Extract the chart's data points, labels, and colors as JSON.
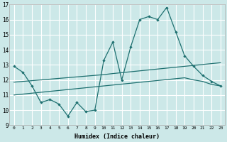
{
  "xlabel": "Humidex (Indice chaleur)",
  "xlim": [
    -0.5,
    23.5
  ],
  "ylim": [
    9,
    17
  ],
  "yticks": [
    9,
    10,
    11,
    12,
    13,
    14,
    15,
    16,
    17
  ],
  "xticks": [
    0,
    1,
    2,
    3,
    4,
    5,
    6,
    7,
    8,
    9,
    10,
    11,
    12,
    13,
    14,
    15,
    16,
    17,
    18,
    19,
    20,
    21,
    22,
    23
  ],
  "bg_color": "#cce8e8",
  "grid_color": "#ffffff",
  "line_color": "#1e7070",
  "line1_y": [
    12.9,
    12.5,
    11.6,
    10.5,
    10.7,
    10.4,
    9.6,
    10.5,
    9.9,
    10.0,
    13.3,
    14.5,
    12.0,
    14.2,
    16.0,
    16.2,
    16.0,
    16.8,
    15.2,
    13.6,
    12.9,
    12.3,
    11.9,
    11.6
  ],
  "line2_y": [
    11.85,
    11.9,
    11.95,
    12.0,
    12.05,
    12.1,
    12.15,
    12.2,
    12.25,
    12.3,
    12.35,
    12.42,
    12.48,
    12.54,
    12.6,
    12.66,
    12.72,
    12.78,
    12.84,
    12.9,
    12.96,
    13.02,
    13.08,
    13.14
  ],
  "line3_y": [
    11.0,
    11.06,
    11.12,
    11.18,
    11.24,
    11.3,
    11.36,
    11.42,
    11.48,
    11.54,
    11.6,
    11.66,
    11.72,
    11.78,
    11.84,
    11.9,
    11.96,
    12.02,
    12.08,
    12.14,
    12.0,
    11.9,
    11.7,
    11.6
  ]
}
